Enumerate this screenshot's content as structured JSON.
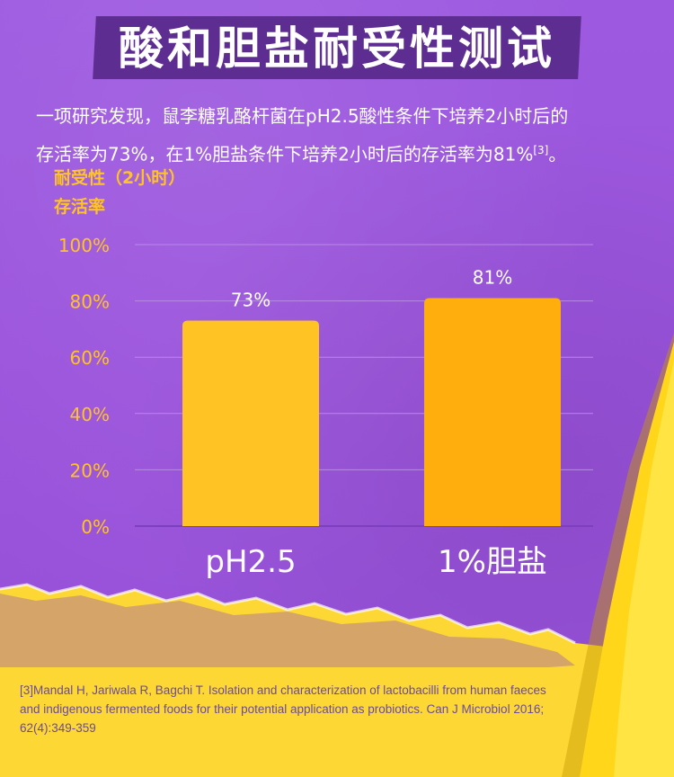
{
  "title": "酸和胆盐耐受性测试",
  "intro": {
    "line1": "一项研究发现，鼠李糖乳酪杆菌在pH2.5酸性条件下培养2小时后的",
    "line2": "存活率为73%，在1%胆盐条件下培养2小时后的存活率为81%",
    "sup": "[3]",
    "end": "。"
  },
  "chart_data": {
    "type": "bar",
    "ylabel_line1": "耐受性（2小时）",
    "ylabel_line2": "存活率",
    "categories": [
      "pH2.5",
      "1%胆盐"
    ],
    "values": [
      73,
      81
    ],
    "data_labels": [
      "73%",
      "81%"
    ],
    "yticks": [
      "0%",
      "20%",
      "40%",
      "60%",
      "80%",
      "100%"
    ],
    "ylim": [
      0,
      100
    ],
    "grid": true,
    "bar_colors": [
      "#ffc423",
      "#ffae0d"
    ]
  },
  "reference": "[3]Mandal H, Jariwala R, Bagchi T. Isolation and characterization of lactobacilli from human faeces and indigenous fermented foods for their potential application as probiotics. Can J Microbiol 2016; 62(4):349-359",
  "colors": {
    "purple_bg": "#9a55dc",
    "banner": "#5d2d92",
    "accent_yellow": "#ffc423",
    "paper_yellow": "#fdd835"
  }
}
